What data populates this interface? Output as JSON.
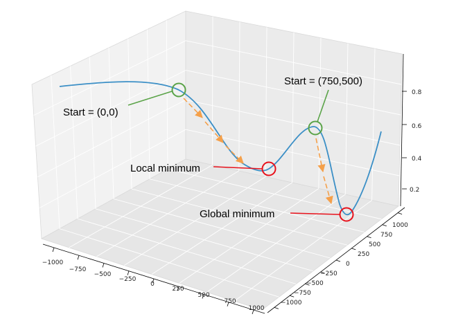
{
  "chart_data": {
    "type": "line",
    "projection": "3d",
    "axes": {
      "x": {
        "ticks": [
          "−1000",
          "−750",
          "−500",
          "−250",
          "0",
          "250",
          "500",
          "750",
          "1000"
        ]
      },
      "y": {
        "ticks": [
          "−1000",
          "−750",
          "−500",
          "−250",
          "0",
          "250",
          "500",
          "750",
          "1000"
        ]
      },
      "z": {
        "ticks": [
          "0.2",
          "0.4",
          "0.6",
          "0.8"
        ]
      }
    },
    "grid": true,
    "series": [
      {
        "color": "#3b8fc6",
        "style": "solid"
      }
    ],
    "descent_paths": [
      {
        "color": "#f5a04a",
        "style": "dashed-arrows",
        "from": "start-1",
        "to": "local-minimum"
      },
      {
        "color": "#f5a04a",
        "style": "dashed-arrows",
        "from": "start-2",
        "to": "global-minimum"
      }
    ],
    "annotations": [
      {
        "id": "start-1",
        "text": "Start = (0,0)",
        "color": "#5aa348",
        "z": 0.86
      },
      {
        "id": "start-2",
        "text": "Start = (750,500)",
        "color": "#5aa348",
        "z": 0.62
      },
      {
        "id": "local-minimum",
        "text": "Local minimum",
        "color": "#e8111b",
        "z": 0.33
      },
      {
        "id": "global-minimum",
        "text": "Global minimum",
        "color": "#e8111b",
        "z": 0.06
      }
    ]
  }
}
